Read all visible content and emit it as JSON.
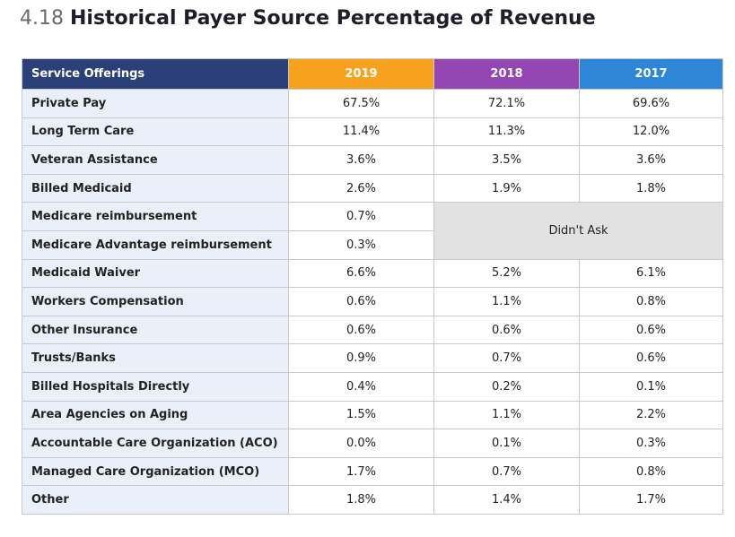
{
  "header": {
    "number": "4.18",
    "title": "Historical Payer Source Percentage of Revenue"
  },
  "table": {
    "columns": [
      "Service Offerings",
      "2019",
      "2018",
      "2017"
    ],
    "rows": [
      [
        "Private Pay",
        "67.5%",
        "72.1%",
        "69.6%"
      ],
      [
        "Long Term Care",
        "11.4%",
        "11.3%",
        "12.0%"
      ],
      [
        "Veteran Assistance",
        "3.6%",
        "3.5%",
        "3.6%"
      ],
      [
        "Billed Medicaid",
        "2.6%",
        "1.9%",
        "1.8%"
      ],
      [
        "Medicare reimbursement",
        "0.7%"
      ],
      [
        "Medicare Advantage reimbursement",
        "0.3%"
      ],
      [
        "Medicaid Waiver",
        "6.6%",
        "5.2%",
        "6.1%"
      ],
      [
        "Workers Compensation",
        "0.6%",
        "1.1%",
        "0.8%"
      ],
      [
        "Other Insurance",
        "0.6%",
        "0.6%",
        "0.6%"
      ],
      [
        "Trusts/Banks",
        "0.9%",
        "0.7%",
        "0.6%"
      ],
      [
        "Billed Hospitals Directly",
        "0.4%",
        "0.2%",
        "0.1%"
      ],
      [
        "Area Agencies on Aging",
        "1.5%",
        "1.1%",
        "2.2%"
      ],
      [
        "Accountable Care Organization (ACO)",
        "0.0%",
        "0.1%",
        "0.3%"
      ],
      [
        "Managed Care Organization (MCO)",
        "1.7%",
        "0.7%",
        "0.8%"
      ],
      [
        "Other",
        "1.8%",
        "1.4%",
        "1.7%"
      ]
    ],
    "didnt_ask": "Didn't Ask"
  }
}
